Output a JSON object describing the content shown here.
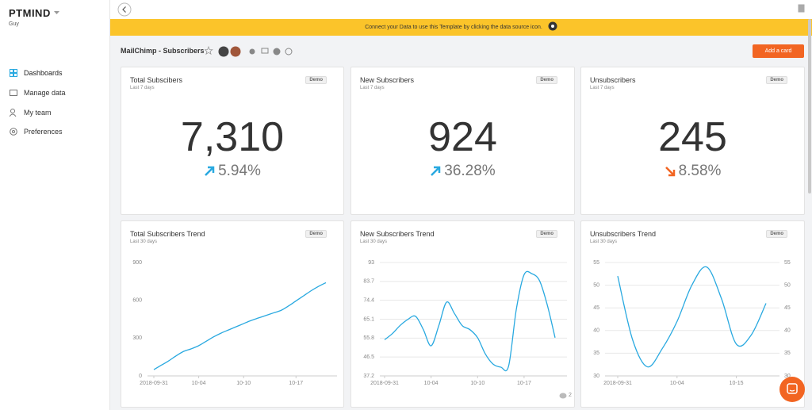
{
  "sidebar": {
    "brand": "PTMIND",
    "user": "Guy",
    "nav": [
      "Dashboards",
      "Manage data",
      "My team",
      "Preferences"
    ]
  },
  "banner": "Connect your Data to use this Template by clicking the data source icon.",
  "toolbar": {
    "title": "MailChimp - Subscribers",
    "button": "Add a card"
  },
  "cards": [
    {
      "title": "Total Subscibers",
      "period": "Last 7 days",
      "badge": "Demo",
      "value": "7,310",
      "change": "5.94%",
      "direction": "up"
    },
    {
      "title": "New Subscribers",
      "period": "Last 7 days",
      "badge": "Demo",
      "value": "924",
      "change": "36.28%",
      "direction": "up"
    },
    {
      "title": "Unsubscribers",
      "period": "Last 7 days",
      "badge": "Demo",
      "value": "245",
      "change": "8.58%",
      "direction": "down"
    }
  ],
  "chart_data": [
    {
      "type": "line",
      "title": "Total Subscribers Trend",
      "subtitle": "Last 30 days",
      "badge": "Demo",
      "categories": [
        "2018-09-31",
        null,
        null,
        null,
        null,
        null,
        "10-04",
        null,
        null,
        null,
        null,
        null,
        "10-10",
        null,
        null,
        null,
        null,
        null,
        null,
        "10-17",
        null,
        null,
        null,
        null
      ],
      "series": [
        {
          "color": "#29a9e0",
          "values": [
            50,
            85,
            120,
            160,
            195,
            215,
            240,
            275,
            310,
            340,
            365,
            390,
            415,
            440,
            460,
            480,
            500,
            520,
            555,
            595,
            635,
            675,
            710,
            740
          ]
        }
      ],
      "ylim": [
        0,
        900
      ],
      "yticks": [
        0,
        300,
        600,
        900
      ],
      "grid": false
    },
    {
      "type": "line",
      "title": "New Subscribers Trend",
      "subtitle": "Last 30 days",
      "badge": "Demo",
      "categories": [
        "2018-09-31",
        null,
        null,
        null,
        null,
        null,
        "10-04",
        null,
        null,
        null,
        null,
        null,
        "10-10",
        null,
        null,
        null,
        null,
        null,
        "10-17",
        null,
        null,
        null,
        null
      ],
      "series": [
        {
          "color": "#29a9e0",
          "values": [
            55,
            58,
            62,
            65,
            66.5,
            60,
            52,
            62,
            73.5,
            68,
            62,
            60,
            56,
            48,
            43,
            41.5,
            42,
            70,
            87,
            87.5,
            84,
            72,
            56
          ]
        }
      ],
      "ylim": [
        37.2,
        93
      ],
      "yticks": [
        37.2,
        46.5,
        55.8,
        65.1,
        74.4,
        83.7,
        93
      ],
      "grid": true
    },
    {
      "type": "line",
      "title": "Unsubscribers Trend",
      "subtitle": "Last 30 days",
      "badge": "Demo",
      "categories": [
        "2018-09-31",
        null,
        null,
        null,
        "10-04",
        null,
        null,
        null,
        "10-15",
        null,
        null
      ],
      "series": [
        {
          "color": "#29a9e0",
          "values": [
            52,
            38,
            32,
            36,
            42,
            50,
            54,
            47,
            37,
            39,
            46
          ]
        }
      ],
      "ylim": [
        30,
        55
      ],
      "yticks": [
        30,
        35,
        40,
        45,
        50,
        55
      ],
      "y2lim": [
        30,
        55
      ],
      "y2ticks": [
        30,
        35,
        40,
        45,
        50,
        55
      ],
      "grid": true
    }
  ],
  "comments": 2
}
